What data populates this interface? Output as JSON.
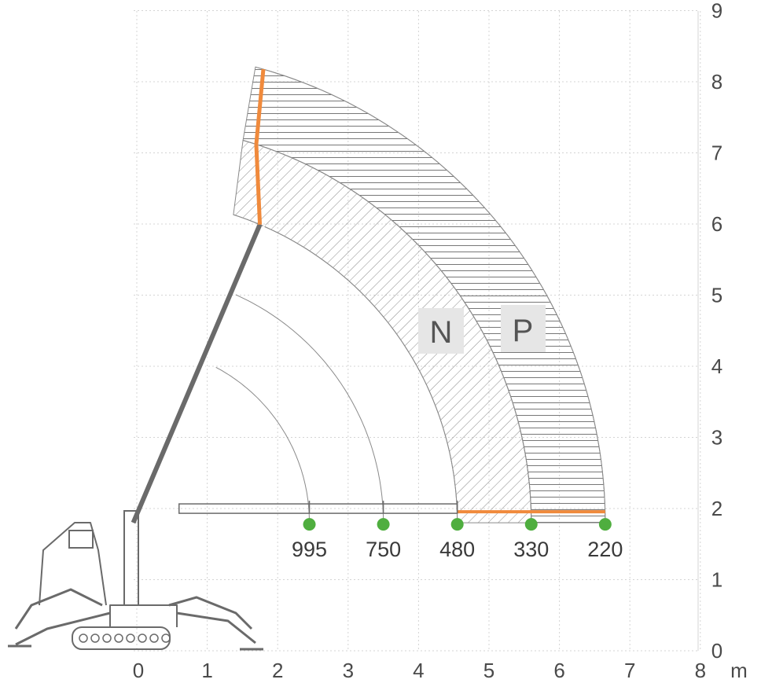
{
  "colors": {
    "background": "#ffffff",
    "grid": "#d4d4d4",
    "arc": "#8a8a8a",
    "machine": "#6a6a6a",
    "hatch": "#8a8a8a",
    "boom_extension": "#f08a3c",
    "marker": "#4fae3f",
    "zone_box": "#e6e6e6",
    "text": "#4a4a4a"
  },
  "axes": {
    "x_ticks": [
      "0",
      "1",
      "2",
      "3",
      "4",
      "5",
      "6",
      "7",
      "8"
    ],
    "y_ticks": [
      "0",
      "1",
      "2",
      "3",
      "4",
      "5",
      "6",
      "7",
      "8",
      "9"
    ],
    "x_unit": "m",
    "xlim": [
      -1.9,
      8
    ],
    "ylim": [
      0,
      9.1
    ]
  },
  "zones": {
    "n_label": "N",
    "p_label": "P"
  },
  "load_points": [
    {
      "radius_m": 2.45,
      "height_m": 1.8,
      "capacity_kg": "995"
    },
    {
      "radius_m": 3.5,
      "height_m": 1.8,
      "capacity_kg": "750"
    },
    {
      "radius_m": 4.55,
      "height_m": 1.8,
      "capacity_kg": "480"
    },
    {
      "radius_m": 5.6,
      "height_m": 1.8,
      "capacity_kg": "330"
    },
    {
      "radius_m": 6.65,
      "height_m": 1.8,
      "capacity_kg": "220"
    }
  ],
  "boom_pivot_m": [
    -0.05,
    1.8
  ]
}
